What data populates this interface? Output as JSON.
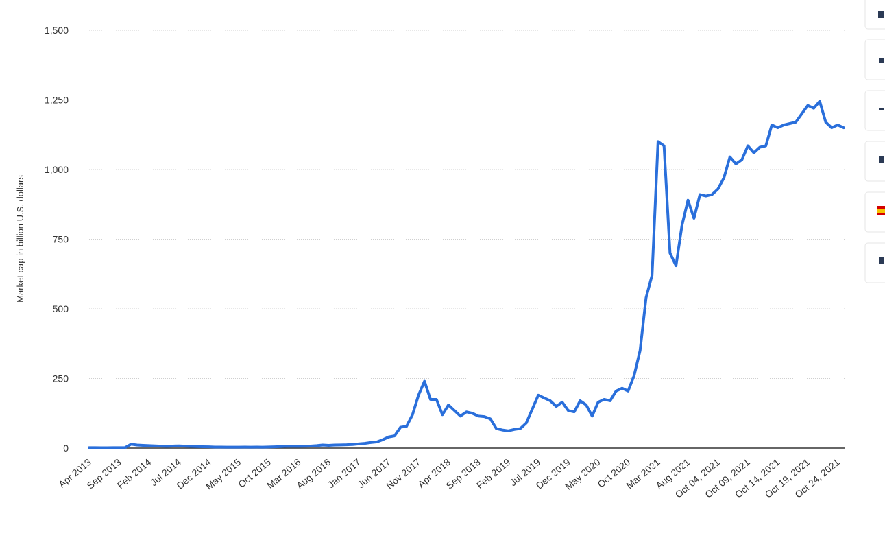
{
  "chart_data": {
    "type": "line",
    "y_label": "Market cap in billion U.S. dollars",
    "color": "#2a6fdb",
    "grid": true,
    "ylim": [
      0,
      1500
    ],
    "yticks": [
      0,
      250,
      500,
      750,
      {
        "value": 1000,
        "label": "1,000"
      },
      {
        "value": 1250,
        "label": "1,250"
      },
      {
        "value": 1500,
        "label": "1,500"
      }
    ],
    "categories": [
      "Apr 2013",
      null,
      null,
      null,
      null,
      "Sep 2013",
      null,
      null,
      null,
      null,
      "Feb 2014",
      null,
      null,
      null,
      null,
      "Jul 2014",
      null,
      null,
      null,
      null,
      "Dec 2014",
      null,
      null,
      null,
      null,
      "May 2015",
      null,
      null,
      null,
      null,
      "Oct 2015",
      null,
      null,
      null,
      null,
      "Mar 2016",
      null,
      null,
      null,
      null,
      "Aug 2016",
      null,
      null,
      null,
      null,
      "Jan 2017",
      null,
      null,
      null,
      null,
      "Jun 2017",
      null,
      null,
      null,
      null,
      "Nov 2017",
      null,
      null,
      null,
      null,
      "Apr 2018",
      null,
      null,
      null,
      null,
      "Sep 2018",
      null,
      null,
      null,
      null,
      "Feb 2019",
      null,
      null,
      null,
      null,
      "Jul 2019",
      null,
      null,
      null,
      null,
      "Dec 2019",
      null,
      null,
      null,
      null,
      "May 2020",
      null,
      null,
      null,
      null,
      "Oct 2020",
      null,
      null,
      null,
      null,
      "Mar 2021",
      null,
      null,
      null,
      null,
      "Aug 2021",
      null,
      null,
      null,
      null,
      "Oct 04, 2021",
      null,
      null,
      null,
      null,
      "Oct 09, 2021",
      null,
      null,
      null,
      null,
      "Oct 14, 2021",
      null,
      null,
      null,
      null,
      "Oct 19, 2021",
      null,
      null,
      null,
      null,
      "Oct 24, 2021",
      null
    ],
    "values": [
      1.5,
      1.4,
      1.2,
      1.1,
      1.4,
      1.6,
      2,
      14,
      11,
      10,
      9,
      8,
      7,
      6.5,
      7.5,
      8,
      7,
      6,
      5.5,
      5,
      4.5,
      3.8,
      3.6,
      3.3,
      3.4,
      3.5,
      3.6,
      3.5,
      3.6,
      3.4,
      4,
      4.5,
      5.5,
      6.5,
      6.5,
      6.5,
      6.8,
      7.5,
      9,
      11,
      10,
      11,
      11.5,
      12,
      13,
      15,
      17,
      20,
      22,
      30,
      40,
      44,
      75,
      78,
      120,
      190,
      240,
      175,
      175,
      120,
      155,
      135,
      115,
      130,
      125,
      115,
      113,
      105,
      70,
      65,
      62,
      67,
      70,
      90,
      140,
      190,
      180,
      170,
      150,
      165,
      135,
      130,
      170,
      155,
      115,
      165,
      175,
      170,
      205,
      215,
      205,
      260,
      350,
      540,
      620,
      1100,
      1085,
      700,
      655,
      800,
      890,
      825,
      910,
      905,
      910,
      930,
      970,
      1045,
      1020,
      1035,
      1085,
      1060,
      1080,
      1085,
      1160,
      1150,
      1160,
      1165,
      1170,
      1200,
      1230,
      1220,
      1245,
      1170,
      1150,
      1160,
      1150
    ]
  }
}
